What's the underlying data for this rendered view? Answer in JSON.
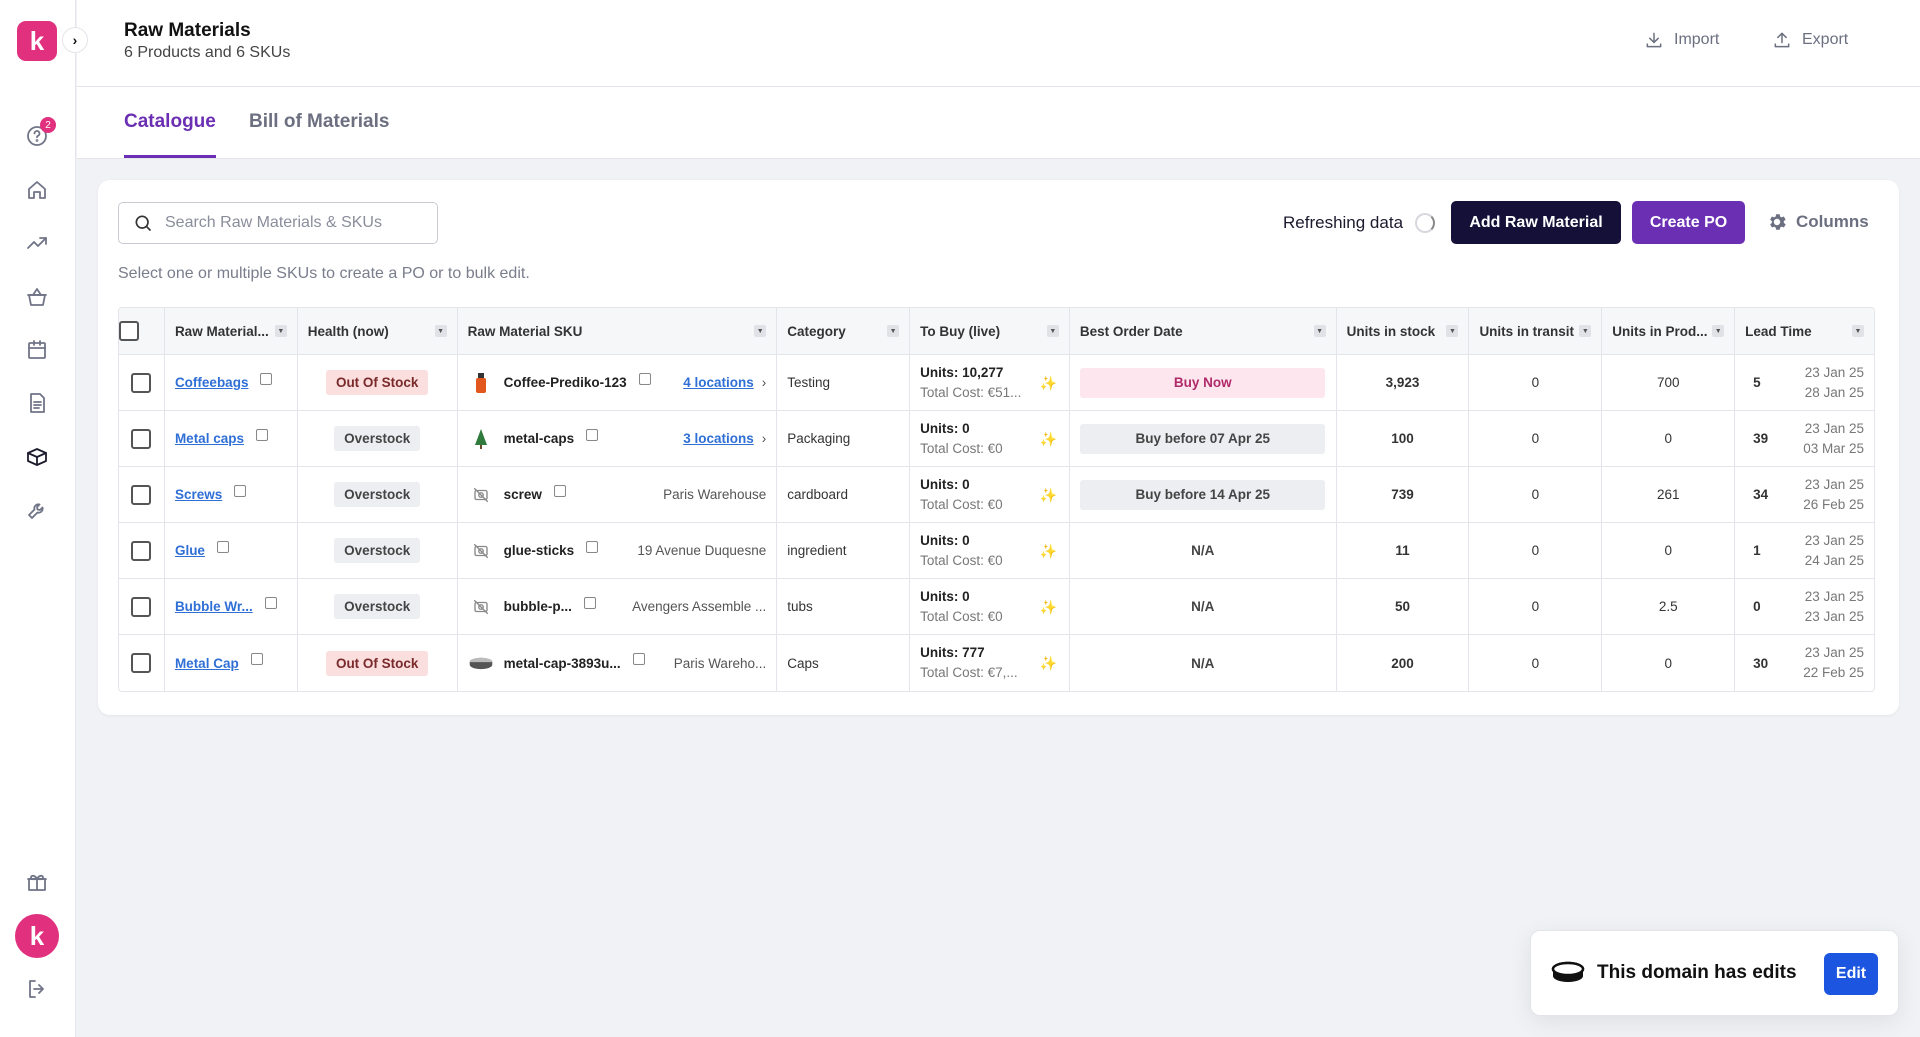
{
  "app": {
    "logo_letter": "k",
    "badge_count": "2",
    "avatar_letter": "k"
  },
  "header": {
    "title": "Raw Materials",
    "subtitle": "6 Products and 6 SKUs",
    "import_label": "Import",
    "export_label": "Export"
  },
  "tabs": [
    {
      "label": "Catalogue",
      "active": true
    },
    {
      "label": "Bill of Materials",
      "active": false
    }
  ],
  "toolbar": {
    "search_placeholder": "Search Raw Materials & SKUs",
    "search_value": "",
    "hint": "Select one or multiple SKUs to create a PO or to bulk edit.",
    "refresh_label": "Refreshing data",
    "add_label": "Add Raw Material",
    "create_po_label": "Create PO",
    "columns_label": "Columns"
  },
  "table": {
    "columns": [
      "Raw Material...",
      "Health (now)",
      "Raw Material SKU",
      "Category",
      "To Buy (live)",
      "Best Order Date",
      "Units in stock",
      "Units in transit",
      "Units in Prod...",
      "Lead Time"
    ],
    "rows": [
      {
        "name": "Coffeebags",
        "health": "Out Of Stock",
        "health_type": "out",
        "sku": "Coffee-Prediko-123",
        "thumb": "bottle",
        "location": "4 locations",
        "location_link": true,
        "category": "Testing",
        "units": "Units:   10,277",
        "cost": "Total Cost: €51...",
        "order": "Buy Now",
        "order_type": "now",
        "stock": "3,923",
        "transit": "0",
        "prod": "700",
        "lead": "5",
        "date1": "23 Jan 25",
        "date2": "28 Jan 25"
      },
      {
        "name": "Metal caps",
        "health": "Overstock",
        "health_type": "over",
        "sku": "metal-caps",
        "thumb": "tree",
        "location": "3 locations",
        "location_link": true,
        "category": "Packaging",
        "units": "Units:   0",
        "cost": "Total Cost: €0",
        "order": "Buy before 07 Apr 25",
        "order_type": "before",
        "stock": "100",
        "transit": "0",
        "prod": "0",
        "lead": "39",
        "date1": "23 Jan 25",
        "date2": "03 Mar 25"
      },
      {
        "name": "Screws",
        "health": "Overstock",
        "health_type": "over",
        "sku": "screw",
        "thumb": "none",
        "location": "Paris Warehouse",
        "location_link": false,
        "category": "cardboard",
        "units": "Units:   0",
        "cost": "Total Cost: €0",
        "order": "Buy before 14 Apr 25",
        "order_type": "before",
        "stock": "739",
        "transit": "0",
        "prod": "261",
        "lead": "34",
        "date1": "23 Jan 25",
        "date2": "26 Feb 25"
      },
      {
        "name": "Glue",
        "health": "Overstock",
        "health_type": "over",
        "sku": "glue-sticks",
        "thumb": "none",
        "location": "19 Avenue Duquesne",
        "location_link": false,
        "category": "ingredient",
        "units": "Units:   0",
        "cost": "Total Cost: €0",
        "order": "N/A",
        "order_type": "na",
        "stock": "11",
        "transit": "0",
        "prod": "0",
        "lead": "1",
        "date1": "23 Jan 25",
        "date2": "24 Jan 25"
      },
      {
        "name": "Bubble Wr...",
        "health": "Overstock",
        "health_type": "over",
        "sku": "bubble-p...",
        "thumb": "none",
        "location": "Avengers Assemble ...",
        "location_link": false,
        "category": "tubs",
        "units": "Units:   0",
        "cost": "Total Cost: €0",
        "order": "N/A",
        "order_type": "na",
        "stock": "50",
        "transit": "0",
        "prod": "2.5",
        "lead": "0",
        "date1": "23 Jan 25",
        "date2": "23 Jan 25"
      },
      {
        "name": "Metal Cap",
        "health": "Out Of Stock",
        "health_type": "out",
        "sku": "metal-cap-3893u...",
        "thumb": "cap",
        "location": "Paris Wareho...",
        "location_link": false,
        "category": "Caps",
        "units": "Units:   777",
        "cost": "Total Cost: €7,...",
        "order": "N/A",
        "order_type": "na",
        "stock": "200",
        "transit": "0",
        "prod": "0",
        "lead": "30",
        "date1": "23 Jan 25",
        "date2": "22 Feb 25"
      }
    ]
  },
  "toast": {
    "text": "This domain has edits",
    "button_label": "Edit"
  },
  "colors": {
    "brand_pink": "#e0307e",
    "primary_purple": "#6b2fb3",
    "dark_navy": "#141038",
    "link_blue": "#2f6fd6",
    "edit_blue": "#1b55e0"
  }
}
